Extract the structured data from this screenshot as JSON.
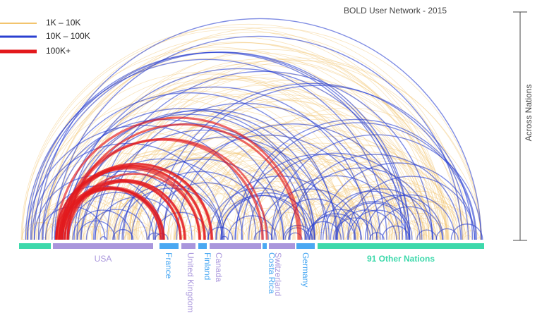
{
  "title": "BOLD User Network - 2015",
  "legend": [
    {
      "label": "1K   – 10K",
      "color": "#f2c46d"
    },
    {
      "label": "10K – 100K",
      "color": "#2a3fd0"
    },
    {
      "label": "100K+",
      "color": "#e3191c"
    }
  ],
  "axis_label": "Across Nations",
  "segments": [
    {
      "label": null,
      "color": "#3dd9ab"
    },
    {
      "label": "USA",
      "color": "#a996dc"
    },
    {
      "label": "France",
      "color": "#4aa8f2"
    },
    {
      "label": "United Kingdom",
      "color": "#a996dc"
    },
    {
      "label": "Finland",
      "color": "#4aa8f2"
    },
    {
      "label": "Canada",
      "color": "#a996dc"
    },
    {
      "label": "Costa Rica",
      "color": "#4aa8f2"
    },
    {
      "label": "Switzerland",
      "color": "#a996dc"
    },
    {
      "label": "Germany",
      "color": "#4aa8f2"
    },
    {
      "label": "91 Other Nations",
      "color": "#3dd9ab"
    }
  ]
}
